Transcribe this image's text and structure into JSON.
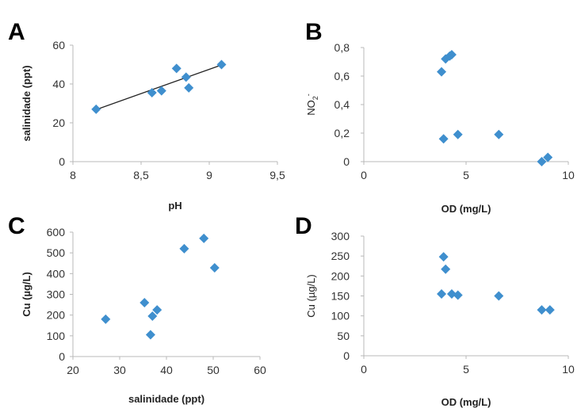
{
  "marker_color": "#3f8fce",
  "trend_color": "#222222",
  "chart_data": [
    {
      "type": "scatter",
      "panel": "A",
      "xlabel": "pH",
      "ylabel": "salinidade (ppt)",
      "xlim": [
        8,
        9.5
      ],
      "ylim": [
        0,
        60
      ],
      "xticks": [
        "8",
        "8,5",
        "9",
        "9,5"
      ],
      "yticks": [
        "0",
        "20",
        "40",
        "60"
      ],
      "points": [
        {
          "x": 8.17,
          "y": 27
        },
        {
          "x": 8.58,
          "y": 35.5
        },
        {
          "x": 8.65,
          "y": 36.5
        },
        {
          "x": 8.76,
          "y": 48
        },
        {
          "x": 8.83,
          "y": 43.5
        },
        {
          "x": 8.85,
          "y": 38
        },
        {
          "x": 9.09,
          "y": 50
        }
      ],
      "trendline": {
        "x": [
          8.17,
          9.09
        ],
        "y": [
          26.8,
          49.8
        ]
      }
    },
    {
      "type": "scatter",
      "panel": "B",
      "xlabel": "OD (mg/L)",
      "ylabel": "NO2-",
      "ylabel_main": "NO",
      "ylabel_sub": "2",
      "ylabel_sup": "-",
      "xlim": [
        0,
        10
      ],
      "ylim": [
        0,
        0.8
      ],
      "xticks": [
        "0",
        "5",
        "10"
      ],
      "yticks": [
        "0",
        "0,2",
        "0,4",
        "0,6",
        "0,8"
      ],
      "points": [
        {
          "x": 3.8,
          "y": 0.63
        },
        {
          "x": 3.9,
          "y": 0.16
        },
        {
          "x": 4.0,
          "y": 0.72
        },
        {
          "x": 4.2,
          "y": 0.74
        },
        {
          "x": 4.3,
          "y": 0.75
        },
        {
          "x": 4.6,
          "y": 0.19
        },
        {
          "x": 6.6,
          "y": 0.19
        },
        {
          "x": 8.7,
          "y": 0.0
        },
        {
          "x": 9.0,
          "y": 0.03
        }
      ]
    },
    {
      "type": "scatter",
      "panel": "C",
      "xlabel": "salinidade (ppt)",
      "ylabel": "Cu (µg/L)",
      "xlim": [
        20,
        60
      ],
      "ylim": [
        0,
        600
      ],
      "xticks": [
        "20",
        "30",
        "40",
        "50",
        "60"
      ],
      "yticks": [
        "0",
        "100",
        "200",
        "300",
        "400",
        "500",
        "600"
      ],
      "points": [
        {
          "x": 27,
          "y": 180
        },
        {
          "x": 35.3,
          "y": 260
        },
        {
          "x": 36.6,
          "y": 105
        },
        {
          "x": 37,
          "y": 195
        },
        {
          "x": 38,
          "y": 225
        },
        {
          "x": 43.8,
          "y": 520
        },
        {
          "x": 48,
          "y": 570
        },
        {
          "x": 50.3,
          "y": 428
        }
      ]
    },
    {
      "type": "scatter",
      "panel": "D",
      "xlabel": "OD (mg/L)",
      "ylabel": "Cu (µg/L)",
      "xlim": [
        0,
        10
      ],
      "ylim": [
        0,
        300
      ],
      "xticks": [
        "0",
        "5",
        "10"
      ],
      "yticks": [
        "0",
        "50",
        "100",
        "150",
        "200",
        "250",
        "300"
      ],
      "points": [
        {
          "x": 3.8,
          "y": 155
        },
        {
          "x": 3.9,
          "y": 248
        },
        {
          "x": 4.0,
          "y": 217
        },
        {
          "x": 4.3,
          "y": 155
        },
        {
          "x": 4.6,
          "y": 152
        },
        {
          "x": 6.6,
          "y": 150
        },
        {
          "x": 8.7,
          "y": 115
        },
        {
          "x": 9.1,
          "y": 115
        }
      ]
    }
  ]
}
